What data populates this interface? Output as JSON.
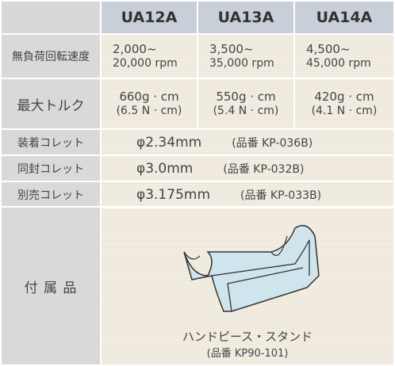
{
  "header": {
    "columns": [
      "UA12A",
      "UA13A",
      "UA14A"
    ]
  },
  "rows": [
    {
      "label": "無負荷回転速度",
      "cells": [
        [
          "2,000~",
          "20,000 rpm"
        ],
        [
          "3,500~",
          "35,000 rpm"
        ],
        [
          "4,500~",
          "45,000 rpm"
        ]
      ]
    },
    {
      "label": "最大トルク",
      "cells": [
        [
          "660g · cm",
          "(6.5 N · cm)"
        ],
        [
          "550g · cm",
          "(5.4 N · cm)"
        ],
        [
          "420g · cm",
          "(4.1 N · cm)"
        ]
      ]
    }
  ],
  "collets": [
    {
      "label": "装着コレット",
      "spec": "φ2.34mm",
      "part": "(品番  KP-036B)"
    },
    {
      "label": "同封コレット",
      "spec": "φ3.0mm",
      "part": "(品番  KP-032B)"
    },
    {
      "label": "別売コレット",
      "spec": "φ3.175mm",
      "part": "(品番  KP-033B)"
    }
  ],
  "accessory": {
    "label": "付 属 品",
    "caption": "ハンドピース・スタンド",
    "part": "(品番  KP90-101)"
  }
}
